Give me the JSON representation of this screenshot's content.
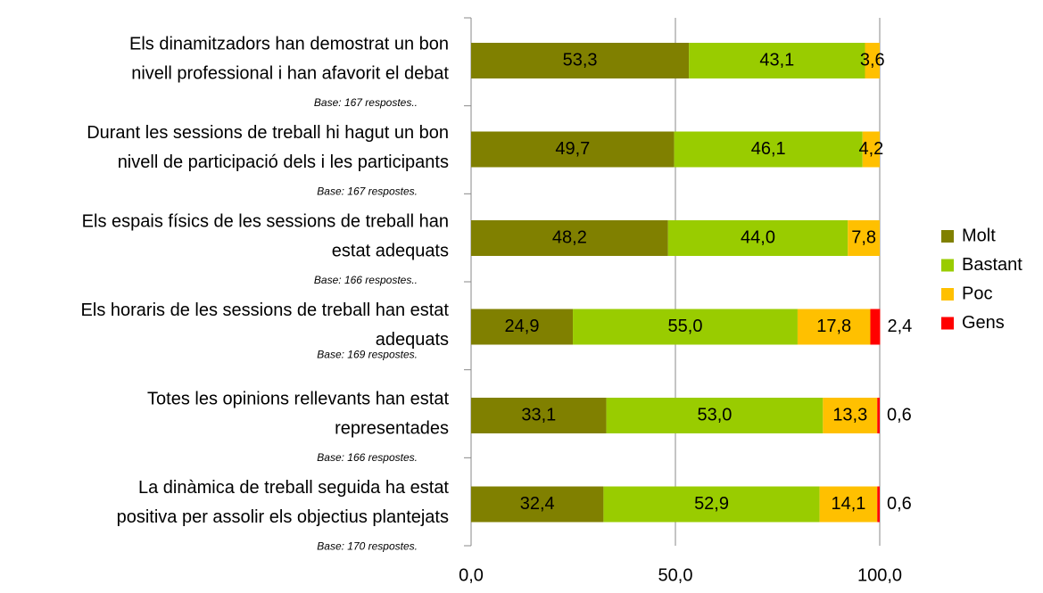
{
  "chart_data": {
    "type": "stacked_barh",
    "categories": [
      [
        "Els dinamitzadors han demostrat un bon",
        "nivell professional i han afavorit el debat"
      ],
      [
        "Durant les sessions de treball hi hagut un bon",
        "nivell de participació dels i les participants"
      ],
      [
        "Els espais físics de les sessions de treball han",
        "estat adequats"
      ],
      [
        "Els horaris de les sessions de treball han estat",
        "adequats"
      ],
      [
        "Totes les opinions rellevants han estat",
        "representades"
      ],
      [
        "La dinàmica de treball seguida ha estat",
        "positiva per assolir els objectius plantejats"
      ]
    ],
    "annotations": [
      "Base: 167 respostes..",
      "Base: 167 respostes.",
      "Base: 166 respostes..",
      "Base: 169 respostes.",
      "Base: 166 respostes.",
      "Base: 170 respostes."
    ],
    "series": [
      {
        "name": "Molt",
        "color": "#808000",
        "values": [
          53.3,
          49.7,
          48.2,
          24.9,
          33.1,
          32.4
        ],
        "value_labels": [
          "53,3",
          "49,7",
          "48,2",
          "24,9",
          "33,1",
          "32,4"
        ]
      },
      {
        "name": "Bastant",
        "color": "#99cc00",
        "values": [
          43.1,
          46.1,
          44.0,
          55.0,
          53.0,
          52.9
        ],
        "value_labels": [
          "43,1",
          "46,1",
          "44,0",
          "55,0",
          "53,0",
          "52,9"
        ]
      },
      {
        "name": "Poc",
        "color": "#ffc000",
        "values": [
          3.6,
          4.2,
          7.8,
          17.8,
          13.3,
          14.1
        ],
        "value_labels": [
          "3,6",
          "4,2",
          "7,8",
          "17,8",
          "13,3",
          "14,1"
        ]
      },
      {
        "name": "Gens",
        "color": "#ff0000",
        "values": [
          null,
          null,
          null,
          2.4,
          0.6,
          0.6
        ],
        "value_labels": [
          null,
          null,
          null,
          "2,4",
          "0,6",
          "0,6"
        ]
      }
    ],
    "xlim": [
      0,
      100
    ],
    "xticks": [
      {
        "value": 0,
        "label": "0,0"
      },
      {
        "value": 50,
        "label": "50,0"
      },
      {
        "value": 100,
        "label": "100,0"
      }
    ],
    "grid": true,
    "legend": "right"
  }
}
